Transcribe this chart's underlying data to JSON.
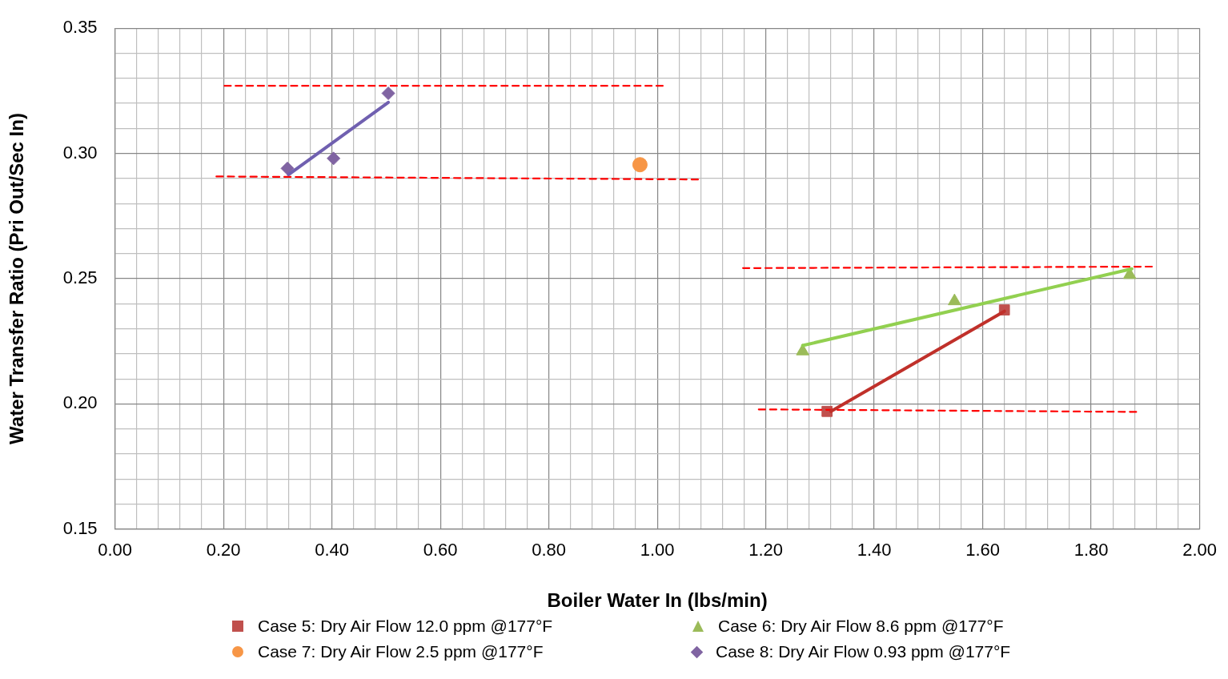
{
  "chart_data": {
    "type": "scatter",
    "xlabel": "Boiler Water In (lbs/min)",
    "ylabel": "Water Transfer Ratio (Pri Out/Sec In)",
    "xlim": [
      0,
      2
    ],
    "ylim": [
      0.15,
      0.35
    ],
    "xticks": [
      {
        "value": 0,
        "label": "0.00"
      },
      {
        "value": 0.04,
        "label": null
      },
      {
        "value": 0.08,
        "label": null
      },
      {
        "value": 0.12,
        "label": null
      },
      {
        "value": 0.16,
        "label": null
      },
      {
        "value": 0.2,
        "label": "0.20"
      },
      {
        "value": 0.24,
        "label": null
      },
      {
        "value": 0.28,
        "label": null
      },
      {
        "value": 0.32,
        "label": null
      },
      {
        "value": 0.36,
        "label": null
      },
      {
        "value": 0.4,
        "label": "0.40"
      },
      {
        "value": 0.44,
        "label": null
      },
      {
        "value": 0.48,
        "label": null
      },
      {
        "value": 0.52,
        "label": null
      },
      {
        "value": 0.56,
        "label": null
      },
      {
        "value": 0.6,
        "label": "0.60"
      },
      {
        "value": 0.64,
        "label": null
      },
      {
        "value": 0.68,
        "label": null
      },
      {
        "value": 0.72,
        "label": null
      },
      {
        "value": 0.76,
        "label": null
      },
      {
        "value": 0.8,
        "label": "0.80"
      },
      {
        "value": 0.84,
        "label": null
      },
      {
        "value": 0.88,
        "label": null
      },
      {
        "value": 0.92,
        "label": null
      },
      {
        "value": 0.96,
        "label": null
      },
      {
        "value": 1,
        "label": "1.00"
      },
      {
        "value": 1.04,
        "label": null
      },
      {
        "value": 1.08,
        "label": null
      },
      {
        "value": 1.12,
        "label": null
      },
      {
        "value": 1.16,
        "label": null
      },
      {
        "value": 1.2,
        "label": "1.20"
      },
      {
        "value": 1.24,
        "label": null
      },
      {
        "value": 1.28,
        "label": null
      },
      {
        "value": 1.32,
        "label": null
      },
      {
        "value": 1.36,
        "label": null
      },
      {
        "value": 1.4,
        "label": "1.40"
      },
      {
        "value": 1.44,
        "label": null
      },
      {
        "value": 1.48,
        "label": null
      },
      {
        "value": 1.52,
        "label": null
      },
      {
        "value": 1.56,
        "label": null
      },
      {
        "value": 1.6,
        "label": "1.60"
      },
      {
        "value": 1.64,
        "label": null
      },
      {
        "value": 1.68,
        "label": null
      },
      {
        "value": 1.72,
        "label": null
      },
      {
        "value": 1.76,
        "label": null
      },
      {
        "value": 1.8,
        "label": "1.80"
      },
      {
        "value": 1.84,
        "label": null
      },
      {
        "value": 1.88,
        "label": null
      },
      {
        "value": 1.92,
        "label": null
      },
      {
        "value": 1.96,
        "label": null
      },
      {
        "value": 2,
        "label": "2.00"
      }
    ],
    "yticks": [
      {
        "value": 0.15,
        "label": "0.15"
      },
      {
        "value": 0.16,
        "label": null
      },
      {
        "value": 0.17,
        "label": null
      },
      {
        "value": 0.18,
        "label": null
      },
      {
        "value": 0.19,
        "label": null
      },
      {
        "value": 0.2,
        "label": "0.20"
      },
      {
        "value": 0.21,
        "label": null
      },
      {
        "value": 0.22,
        "label": null
      },
      {
        "value": 0.23,
        "label": null
      },
      {
        "value": 0.24,
        "label": null
      },
      {
        "value": 0.25,
        "label": "0.25"
      },
      {
        "value": 0.26,
        "label": null
      },
      {
        "value": 0.27,
        "label": null
      },
      {
        "value": 0.28,
        "label": null
      },
      {
        "value": 0.29,
        "label": null
      },
      {
        "value": 0.3,
        "label": "0.30"
      },
      {
        "value": 0.31,
        "label": null
      },
      {
        "value": 0.32,
        "label": null
      },
      {
        "value": 0.33,
        "label": null
      },
      {
        "value": 0.34,
        "label": null
      },
      {
        "value": 0.35,
        "label": "0.35"
      }
    ],
    "grid": true,
    "legend": "bottom",
    "series": [
      {
        "name": "Case 5: Dry Air Flow 12.0 ppm @177°F",
        "marker": "square",
        "color": "#c0504d",
        "x": [
          1.313,
          1.64
        ],
        "values": [
          0.197,
          0.2375
        ]
      },
      {
        "name": "Case 6: Dry Air Flow 8.6 ppm @177°F",
        "marker": "triangle",
        "color": "#9bbb59",
        "x": [
          1.268,
          1.548,
          1.871
        ],
        "values": [
          0.221,
          0.241,
          0.2515
        ]
      },
      {
        "name": "Case 7: Dry Air Flow 2.5 ppm @177°F",
        "marker": "circle",
        "color": "#f79646",
        "x": [
          0.968
        ],
        "values": [
          0.2955
        ]
      },
      {
        "name": "Case 8: Dry Air Flow 0.93 ppm @177°F",
        "marker": "diamond",
        "color": "#8064a2",
        "x": [
          0.318,
          0.403,
          0.504
        ],
        "values": [
          0.294,
          0.298,
          0.324
        ]
      },
      {
        "type": "line",
        "marker": "none",
        "line_style": "solid",
        "color": "#c0302a",
        "x": [
          1.32,
          1.64
        ],
        "values": [
          0.197,
          0.237
        ]
      },
      {
        "type": "line",
        "marker": "none",
        "line_style": "solid",
        "color": "#92d050",
        "x": [
          1.268,
          1.875
        ],
        "values": [
          0.2233,
          0.2539
        ]
      },
      {
        "type": "line",
        "marker": "none",
        "line_style": "solid",
        "color": "#7060b0",
        "x": [
          0.32,
          0.504
        ],
        "values": [
          0.2915,
          0.3204
        ]
      },
      {
        "type": "line",
        "marker": "none",
        "line_style": "dashed",
        "color": "#ff0000",
        "x": [
          0.202,
          1.01
        ],
        "values": [
          0.327,
          0.327
        ]
      },
      {
        "type": "line",
        "marker": "none",
        "line_style": "dashed",
        "color": "#ff0000",
        "x": [
          0.187,
          1.075
        ],
        "values": [
          0.2908,
          0.2896
        ]
      },
      {
        "type": "line",
        "marker": "none",
        "line_style": "dashed",
        "color": "#ff0000",
        "x": [
          1.158,
          1.912
        ],
        "values": [
          0.2542,
          0.2548
        ]
      },
      {
        "type": "line",
        "marker": "none",
        "line_style": "dashed",
        "color": "#ff0000",
        "x": [
          1.187,
          1.883
        ],
        "values": [
          0.1978,
          0.1968
        ]
      }
    ]
  }
}
